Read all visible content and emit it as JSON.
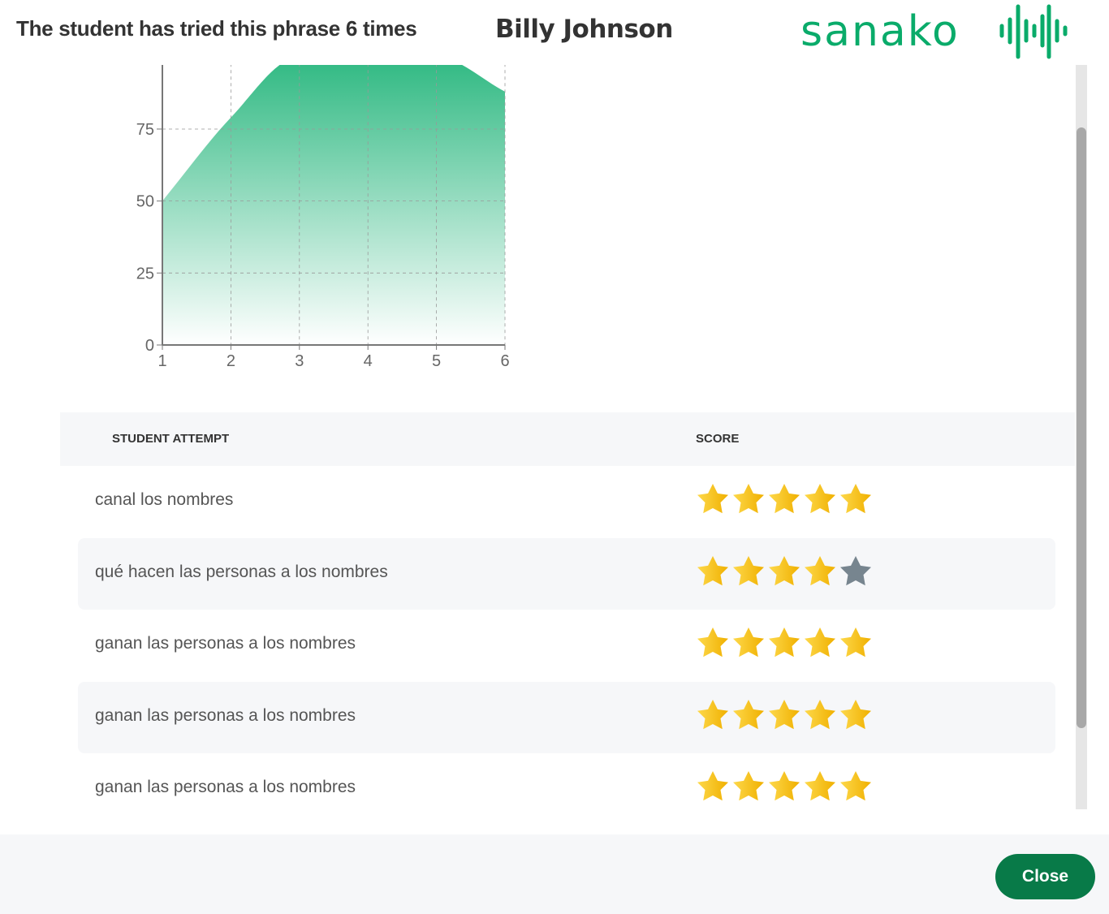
{
  "header": {
    "title": "The student has tried this phrase 6 times",
    "student_name": "Billy Johnson",
    "logo_text": "sanako"
  },
  "colors": {
    "accent": "#0aab6a",
    "star": "#f5b800",
    "star_empty": "#77858f",
    "close_button": "#087a48"
  },
  "chart_data": {
    "type": "area",
    "x": [
      1,
      2,
      3,
      4,
      5,
      6
    ],
    "values": [
      50,
      79,
      100,
      100,
      100,
      88
    ],
    "xlim": [
      1,
      6
    ],
    "ylim": [
      0,
      100
    ],
    "yticks": [
      "0",
      "25",
      "50",
      "75",
      "100"
    ],
    "xticks": [
      "1",
      "2",
      "3",
      "4",
      "5",
      "6"
    ],
    "grid": true,
    "title": "",
    "xlabel": "",
    "ylabel": ""
  },
  "table": {
    "headers": [
      "STUDENT ATTEMPT",
      "SCORE"
    ],
    "rows": [
      {
        "attempt": "canal los nombres",
        "score": 5
      },
      {
        "attempt": "qué hacen las personas a los nombres",
        "score": 4
      },
      {
        "attempt": "ganan las personas a los nombres",
        "score": 5
      },
      {
        "attempt": "ganan las personas a los nombres",
        "score": 5
      },
      {
        "attempt": "ganan las personas a los nombres",
        "score": 5
      }
    ],
    "max_score": 5
  },
  "footer": {
    "close_label": "Close"
  }
}
